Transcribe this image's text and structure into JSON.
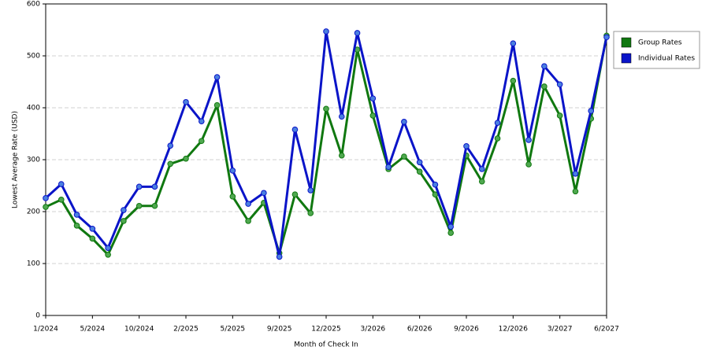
{
  "chart_data": {
    "type": "line",
    "x_label": "Month of Check In",
    "y_label": "Lowest Average Rate (USD)",
    "categories": [
      "1/2024",
      null,
      null,
      "5/2024",
      null,
      null,
      "10/2024",
      null,
      null,
      "2/2025",
      null,
      null,
      "5/2025",
      null,
      null,
      "9/2025",
      null,
      null,
      "12/2025",
      null,
      null,
      "3/2026",
      null,
      null,
      "6/2026",
      null,
      null,
      "9/2026",
      null,
      null,
      "12/2026",
      null,
      null,
      "3/2027",
      null,
      null,
      "6/2027"
    ],
    "series": [
      {
        "name": "Group Rates",
        "color": "#107810",
        "marker": "#4fa84f",
        "values": [
          209,
          223,
          173,
          148,
          117,
          182,
          211,
          211,
          292,
          302,
          336,
          405,
          229,
          182,
          217,
          120,
          233,
          197,
          398,
          308,
          512,
          385,
          282,
          306,
          277,
          233,
          159,
          308,
          258,
          341,
          452,
          291,
          441,
          385,
          239,
          379,
          539
        ]
      },
      {
        "name": "Individual Rates",
        "color": "#0a14c8",
        "marker": "#4a7fe0",
        "values": [
          226,
          253,
          194,
          167,
          130,
          203,
          248,
          248,
          327,
          411,
          374,
          459,
          279,
          215,
          236,
          113,
          358,
          241,
          547,
          383,
          544,
          418,
          286,
          373,
          295,
          252,
          171,
          326,
          282,
          371,
          524,
          338,
          480,
          445,
          273,
          394,
          536
        ]
      }
    ],
    "ylim": [
      0,
      600
    ],
    "yticks": [
      0,
      100,
      200,
      300,
      400,
      500,
      600
    ],
    "grid": true,
    "legend": "right"
  }
}
